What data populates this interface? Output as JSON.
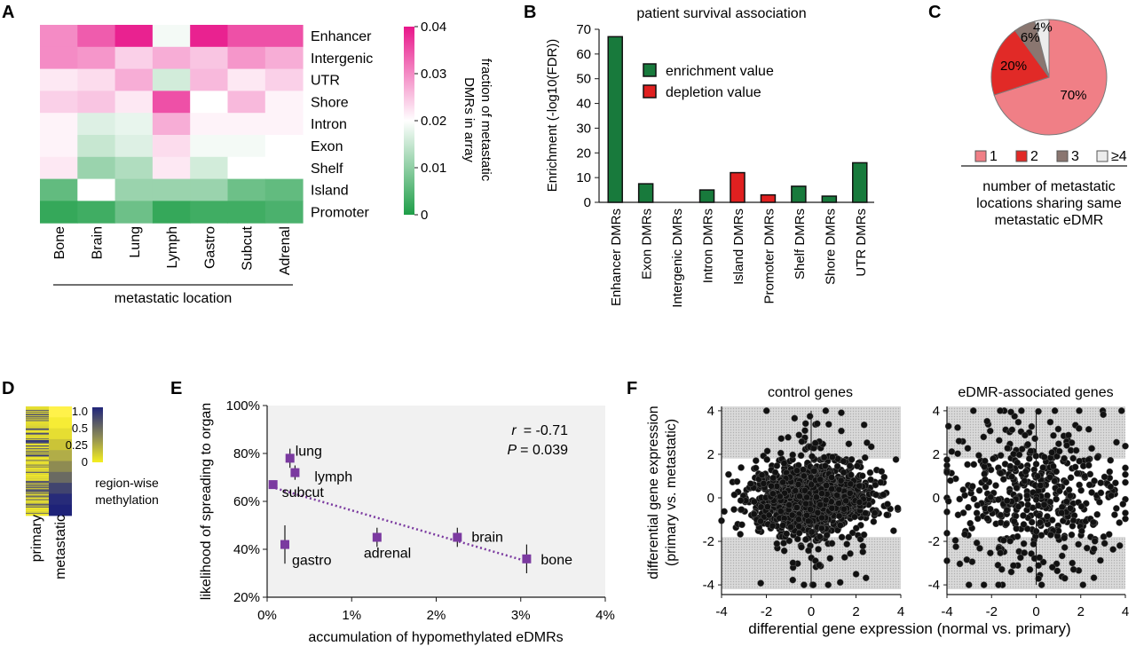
{
  "panels": {
    "A": "A",
    "B": "B",
    "C": "C",
    "D": "D",
    "E": "E",
    "F": "F"
  },
  "colors": {
    "pink": "#e8168a",
    "white": "#ffffff",
    "green": "#1e9e48",
    "enrich": "#187a3c",
    "deplete": "#e02020",
    "purple": "#7b3aa0",
    "pie": [
      "#f07f86",
      "#e12a27",
      "#8a7670",
      "#ececec"
    ]
  },
  "chart_data": [
    {
      "id": "A",
      "type": "heatmap",
      "rows": [
        "Enhancer",
        "Intergenic",
        "UTR",
        "Shore",
        "Intron",
        "Exon",
        "Shelf",
        "Island",
        "Promoter"
      ],
      "columns": [
        "Bone",
        "Brain",
        "Lung",
        "Lymph",
        "Gastro",
        "Subcut",
        "Adrenal"
      ],
      "values": [
        [
          0.03,
          0.034,
          0.039,
          0.019,
          0.039,
          0.035,
          0.035
        ],
        [
          0.03,
          0.029,
          0.024,
          0.027,
          0.025,
          0.029,
          0.027
        ],
        [
          0.022,
          0.023,
          0.027,
          0.016,
          0.026,
          0.022,
          0.024
        ],
        [
          0.024,
          0.025,
          0.022,
          0.035,
          0.02,
          0.026,
          0.021
        ],
        [
          0.021,
          0.017,
          0.018,
          0.027,
          0.021,
          0.021,
          0.021
        ],
        [
          0.021,
          0.015,
          0.017,
          0.023,
          0.019,
          0.019,
          0.02
        ],
        [
          0.022,
          0.011,
          0.013,
          0.022,
          0.016,
          0.02,
          0.02
        ],
        [
          0.006,
          0.02,
          0.011,
          0.011,
          0.011,
          0.007,
          0.006
        ],
        [
          0.002,
          0.003,
          0.007,
          0.002,
          0.003,
          0.003,
          0.004
        ]
      ],
      "colorbar": {
        "ticks": [
          "0.04",
          "0.03",
          "0.02",
          "0.01",
          "0"
        ],
        "label_lines": [
          "fraction of  metastatic",
          "DMRs in array"
        ],
        "min": 0,
        "max": 0.04
      },
      "xlabel": "metastatic location"
    },
    {
      "id": "B",
      "type": "bar",
      "title": "patient survival association",
      "ylabel": "Enrichment (-log10(FDR))",
      "ylim": [
        0,
        70
      ],
      "yticks": [
        "0",
        "10",
        "20",
        "30",
        "40",
        "50",
        "60",
        "70"
      ],
      "categories": [
        "Enhancer DMRs",
        "Exon DMRs",
        "Intergenic DMRs",
        "Intron DMRs",
        "Island  DMRs",
        "Promoter DMRs",
        "Shelf DMRs",
        "Shore DMRs",
        "UTR DMRs"
      ],
      "values": [
        67,
        7.5,
        0,
        5,
        12,
        3,
        6.5,
        2.5,
        16
      ],
      "kind": [
        "enrichment",
        "enrichment",
        "enrichment",
        "enrichment",
        "depletion",
        "depletion",
        "enrichment",
        "enrichment",
        "enrichment"
      ],
      "legend": [
        "enrichment value",
        "depletion value"
      ]
    },
    {
      "id": "C",
      "type": "pie",
      "categories": [
        "1",
        "2",
        "3",
        "≥4"
      ],
      "values": [
        70,
        20,
        6,
        4
      ],
      "labels": [
        "70%",
        "20%",
        "6%",
        "4%"
      ],
      "caption_lines": [
        "number of metastatic",
        "locations sharing same",
        "metastatic eDMR"
      ]
    },
    {
      "id": "D",
      "type": "heatmap",
      "columns": [
        "primary",
        "metastatic"
      ],
      "colorbar": {
        "ticks": [
          "1.0",
          "0.5",
          "0.25",
          "0"
        ],
        "label_lines": [
          "region-wise",
          "methylation"
        ]
      }
    },
    {
      "id": "E",
      "type": "scatter",
      "xlabel": "accumulation of hypomethylated eDMRs",
      "ylabel": "likelihood of spreading to organ",
      "xticks": [
        "0%",
        "1%",
        "2%",
        "3%",
        "4%"
      ],
      "yticks": [
        "20%",
        "40%",
        "60%",
        "80%",
        "100%"
      ],
      "xlim": [
        0,
        4
      ],
      "ylim": [
        20,
        100
      ],
      "points": [
        {
          "label": "lung",
          "x": 0.27,
          "y": 78,
          "err": 4
        },
        {
          "label": "lymph",
          "x": 0.33,
          "y": 72,
          "err": 3
        },
        {
          "label": "subcut",
          "x": 0.07,
          "y": 67,
          "err": 0
        },
        {
          "label": "gastro",
          "x": 0.21,
          "y": 42,
          "err": 8
        },
        {
          "label": "adrenal",
          "x": 1.3,
          "y": 45,
          "err": 4
        },
        {
          "label": "brain",
          "x": 2.25,
          "y": 45,
          "err": 4
        },
        {
          "label": "bone",
          "x": 3.07,
          "y": 36,
          "err": 6
        }
      ],
      "trend": [
        [
          0.05,
          66
        ],
        [
          3.07,
          35
        ]
      ],
      "stats": {
        "r_label": "r",
        "r_value": "=  -0.71",
        "p_label": "P",
        "p_value": "= 0.039"
      }
    },
    {
      "id": "F",
      "type": "scatter",
      "subplots": [
        "control genes",
        "eDMR-associated genes"
      ],
      "xlabel": "differential gene expression (normal vs. primary)",
      "ylabel_lines": [
        "differential gene expression",
        "(primary vs. metastatic)"
      ],
      "xticks": [
        "-4",
        "-2",
        "0",
        "2",
        "4"
      ],
      "yticks": [
        "4",
        "2",
        "0",
        "-2",
        "-4"
      ],
      "xlim": [
        -4,
        4
      ],
      "ylim": [
        -4.2,
        4.2
      ]
    }
  ]
}
